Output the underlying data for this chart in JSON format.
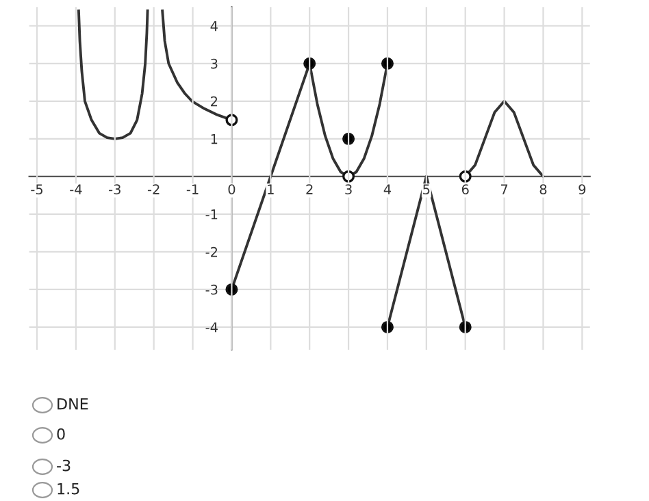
{
  "chart_data": {
    "type": "line",
    "xlim": [
      -5.2,
      9.2
    ],
    "ylim": [
      -4.6,
      4.5
    ],
    "xticks": [
      -5,
      -4,
      -3,
      -2,
      -1,
      0,
      1,
      2,
      3,
      4,
      5,
      6,
      7,
      8,
      9
    ],
    "yticks": [
      -4,
      -3,
      -2,
      -1,
      1,
      2,
      3,
      4
    ],
    "grid": true,
    "series": [
      {
        "color": "#333333",
        "x": [
          -3.93,
          -3.9,
          -3.85,
          -3.77,
          -3.6,
          -3.4,
          -3.2,
          -3.0,
          -2.8,
          -2.6,
          -2.43,
          -2.3,
          -2.22,
          -2.18,
          -2.16
        ],
        "values": [
          4.4,
          3.6,
          2.8,
          2.0,
          1.5,
          1.15,
          1.03,
          1.0,
          1.03,
          1.15,
          1.5,
          2.2,
          3.0,
          3.8,
          4.4
        ]
      },
      {
        "color": "#333333",
        "x": [
          -1.78,
          -1.72,
          -1.62,
          -1.4,
          -1.2,
          -1.02,
          -0.7,
          -0.4,
          0
        ],
        "values": [
          4.4,
          3.6,
          3.0,
          2.5,
          2.2,
          2.0,
          1.8,
          1.65,
          1.5
        ]
      },
      {
        "color": "#333333",
        "x": [
          0,
          2,
          2.2,
          2.4,
          2.6,
          2.8,
          3.0,
          3.2,
          3.4,
          3.6,
          3.8,
          4.0
        ],
        "values": [
          -3,
          3,
          1.92,
          1.08,
          0.48,
          0.12,
          0,
          0.12,
          0.48,
          1.08,
          1.92,
          3
        ]
      },
      {
        "color": "#333333",
        "x": [
          4,
          5,
          6
        ],
        "values": [
          -4,
          0,
          -4
        ]
      },
      {
        "color": "#333333",
        "x": [
          6,
          6.25,
          6.5,
          6.75,
          7,
          7.25,
          7.5,
          7.75,
          8
        ],
        "values": [
          0,
          0.3,
          1.0,
          1.7,
          2.0,
          1.7,
          1.0,
          0.3,
          0
        ]
      },
      {
        "type": "scatter",
        "marker": "circle",
        "color": "#000000",
        "x": [
          0,
          2,
          3,
          4,
          4,
          6
        ],
        "values": [
          -3,
          3,
          1,
          3,
          -4,
          -4
        ]
      },
      {
        "type": "scatter",
        "marker": "circle",
        "color": "#ffffff",
        "x": [
          0,
          3,
          6
        ],
        "values": [
          1.5,
          0,
          0
        ]
      }
    ],
    "annotations": [
      "DNE",
      "0",
      "-3",
      "1.5"
    ]
  }
}
